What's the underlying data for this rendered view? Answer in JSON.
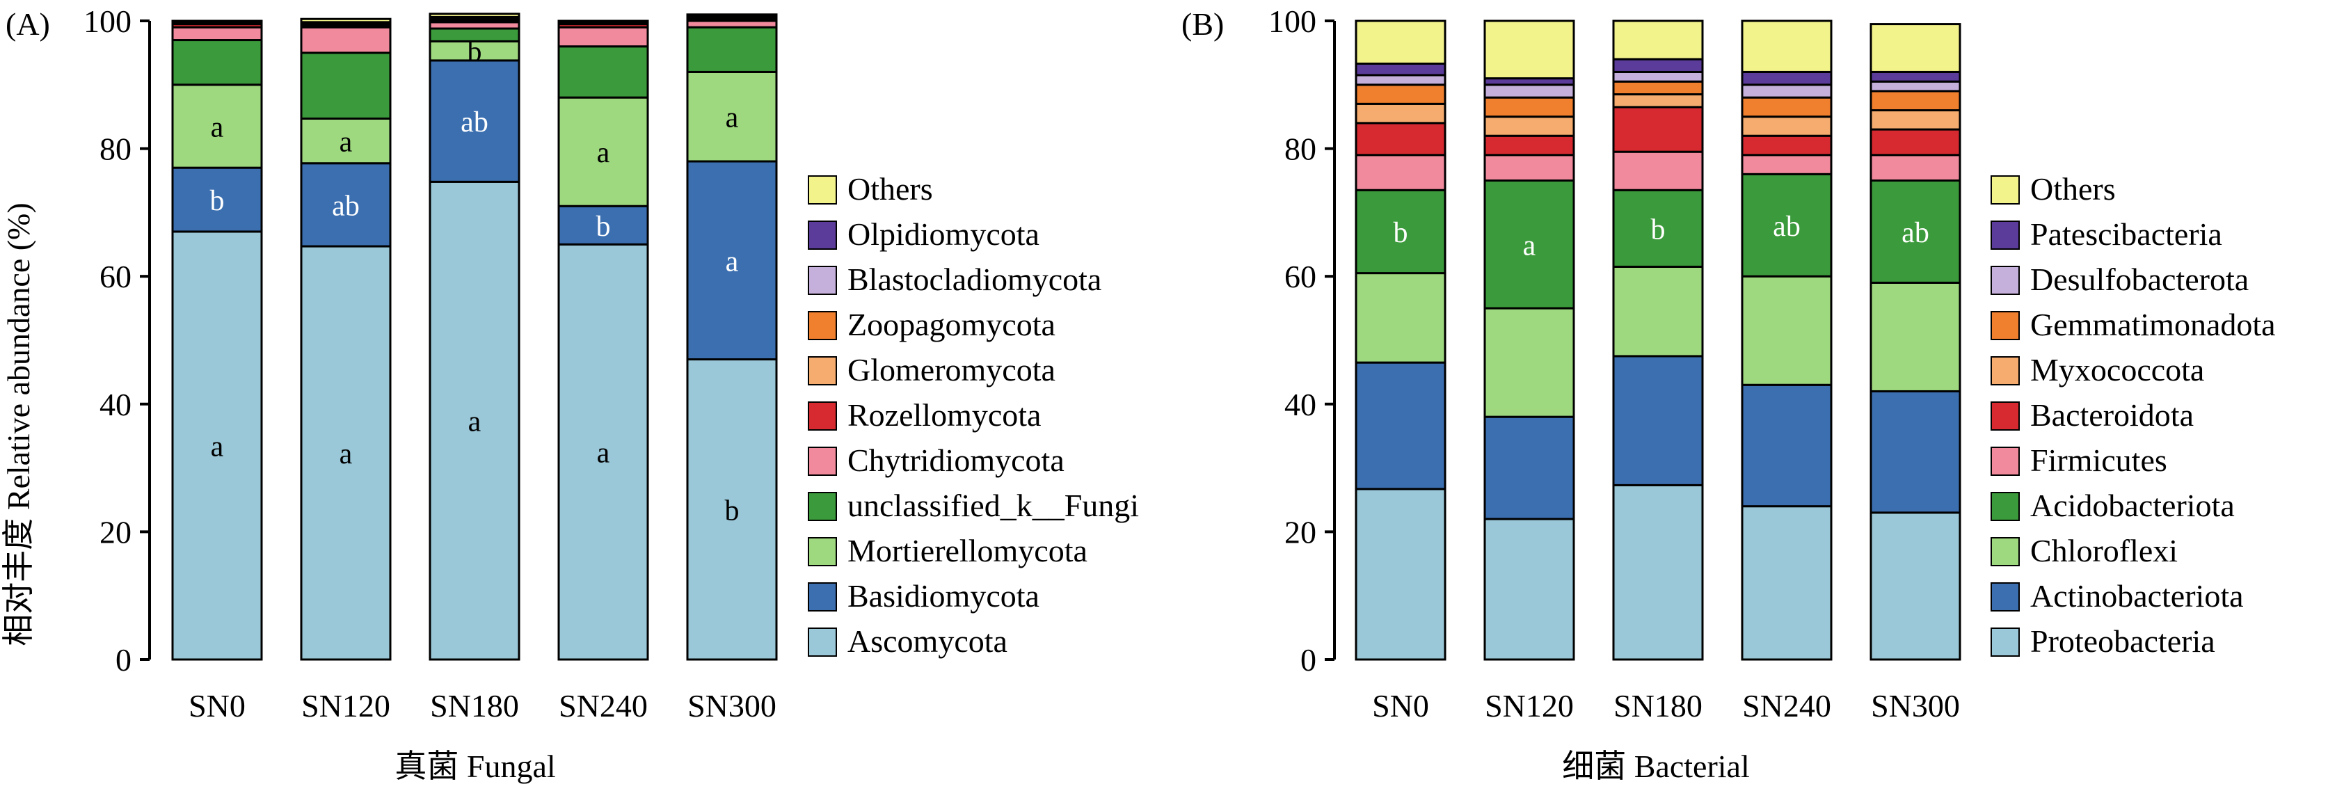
{
  "figure": {
    "y_axis_title": "相对丰度 Relative abundance (%)"
  },
  "chart_data": [
    {
      "type": "bar",
      "stacked": true,
      "panel_label": "(A)",
      "xlabel": "真菌 Fungal",
      "ylabel": "相对丰度 Relative abundance (%)",
      "ylim": [
        0,
        100
      ],
      "yticks": [
        0,
        20,
        40,
        60,
        80,
        100
      ],
      "legend_position": "right",
      "categories": [
        "SN0",
        "SN120",
        "SN180",
        "SN240",
        "SN300"
      ],
      "series": [
        {
          "name": "Ascomycota",
          "color": "#9ac8d8",
          "values": [
            67,
            64.7,
            74.8,
            65,
            47
          ],
          "labels": [
            "a",
            "a",
            "a",
            "a",
            "b"
          ]
        },
        {
          "name": "Basidiomycota",
          "color": "#3b6fb0",
          "values": [
            10,
            13,
            19,
            6,
            31
          ],
          "labels": [
            "b",
            "ab",
            "ab",
            "b",
            "a"
          ]
        },
        {
          "name": "Mortierellomycota",
          "color": "#9fd97f",
          "values": [
            13,
            7,
            3,
            17,
            14
          ],
          "labels": [
            "a",
            "a",
            "b",
            "a",
            "a"
          ]
        },
        {
          "name": "unclassified_k__Fungi",
          "color": "#3b9a3b",
          "values": [
            7,
            10.3,
            2,
            8,
            7
          ],
          "labels": [
            "",
            "",
            "",
            "",
            ""
          ]
        },
        {
          "name": "Chytridiomycota",
          "color": "#f08a9c",
          "values": [
            2,
            4,
            1,
            3,
            1
          ],
          "labels": [
            "",
            "",
            "",
            "",
            ""
          ]
        },
        {
          "name": "Rozellomycota",
          "color": "#d62a30",
          "values": [
            0.5,
            0.3,
            0.3,
            0.5,
            0.3
          ],
          "labels": [
            "",
            "",
            "",
            "",
            ""
          ]
        },
        {
          "name": "Glomeromycota",
          "color": "#f5ac6e",
          "values": [
            0.2,
            0.2,
            0.2,
            0.2,
            0.2
          ],
          "labels": [
            "",
            "",
            "",
            "",
            ""
          ]
        },
        {
          "name": "Zoopagomycota",
          "color": "#f07f2e",
          "values": [
            0.1,
            0.1,
            0.1,
            0.1,
            0.1
          ],
          "labels": [
            "",
            "",
            "",
            "",
            ""
          ]
        },
        {
          "name": "Blastocladiomycota",
          "color": "#c5b0dc",
          "values": [
            0.1,
            0.1,
            0.1,
            0.1,
            0.1
          ],
          "labels": [
            "",
            "",
            "",
            "",
            ""
          ]
        },
        {
          "name": "Olpidiomycota",
          "color": "#5b3c9b",
          "values": [
            0.1,
            0.1,
            0.1,
            0.1,
            0.1
          ],
          "labels": [
            "",
            "",
            "",
            "",
            ""
          ]
        },
        {
          "name": "Others",
          "color": "#f3f38b",
          "values": [
            0.0,
            0.5,
            0.5,
            0.0,
            0.2
          ],
          "labels": [
            "",
            "",
            "",
            "",
            ""
          ]
        }
      ]
    },
    {
      "type": "bar",
      "stacked": true,
      "panel_label": "(B)",
      "xlabel": "细菌 Bacterial",
      "ylabel": "",
      "ylim": [
        0,
        100
      ],
      "yticks": [
        0,
        20,
        40,
        60,
        80,
        100
      ],
      "legend_position": "right",
      "categories": [
        "SN0",
        "SN120",
        "SN180",
        "SN240",
        "SN300"
      ],
      "series": [
        {
          "name": "Proteobacteria",
          "color": "#9ac8d8",
          "values": [
            26.7,
            22,
            27.3,
            24,
            23
          ],
          "labels": [
            "",
            "",
            "",
            "",
            ""
          ]
        },
        {
          "name": "Actinobacteriota",
          "color": "#3b6fb0",
          "values": [
            19.8,
            16,
            20.2,
            19,
            19
          ],
          "labels": [
            "",
            "",
            "",
            "",
            ""
          ]
        },
        {
          "name": "Chloroflexi",
          "color": "#9fd97f",
          "values": [
            14,
            17,
            14,
            17,
            17
          ],
          "labels": [
            "",
            "",
            "",
            "",
            ""
          ]
        },
        {
          "name": "Acidobacteriota",
          "color": "#3b9a3b",
          "values": [
            13,
            20,
            12,
            16,
            16
          ],
          "labels": [
            "b",
            "a",
            "b",
            "ab",
            "ab"
          ]
        },
        {
          "name": "Firmicutes",
          "color": "#f08a9c",
          "values": [
            5.5,
            4,
            6,
            3,
            4
          ],
          "labels": [
            "",
            "",
            "",
            "",
            ""
          ]
        },
        {
          "name": "Bacteroidota",
          "color": "#d62a30",
          "values": [
            5,
            3,
            7,
            3,
            4
          ],
          "labels": [
            "",
            "",
            "",
            "",
            ""
          ]
        },
        {
          "name": "Myxococcota",
          "color": "#f5ac6e",
          "values": [
            3,
            3,
            2,
            3,
            3
          ],
          "labels": [
            "",
            "",
            "",
            "",
            ""
          ]
        },
        {
          "name": "Gemmatimonadota",
          "color": "#f07f2e",
          "values": [
            3,
            3,
            2,
            3,
            3
          ],
          "labels": [
            "",
            "",
            "",
            "",
            ""
          ]
        },
        {
          "name": "Desulfobacterota",
          "color": "#c5b0dc",
          "values": [
            1.5,
            2,
            1.5,
            2,
            1.5
          ],
          "labels": [
            "",
            "",
            "",
            "",
            ""
          ]
        },
        {
          "name": "Patescibacteria",
          "color": "#5b3c9b",
          "values": [
            1.8,
            1,
            2,
            2,
            1.5
          ],
          "labels": [
            "",
            "",
            "",
            "",
            ""
          ]
        },
        {
          "name": "Others",
          "color": "#f3f38b",
          "values": [
            6.7,
            9,
            6,
            8,
            7.5
          ],
          "labels": [
            "",
            "",
            "",
            "",
            ""
          ]
        }
      ]
    }
  ]
}
